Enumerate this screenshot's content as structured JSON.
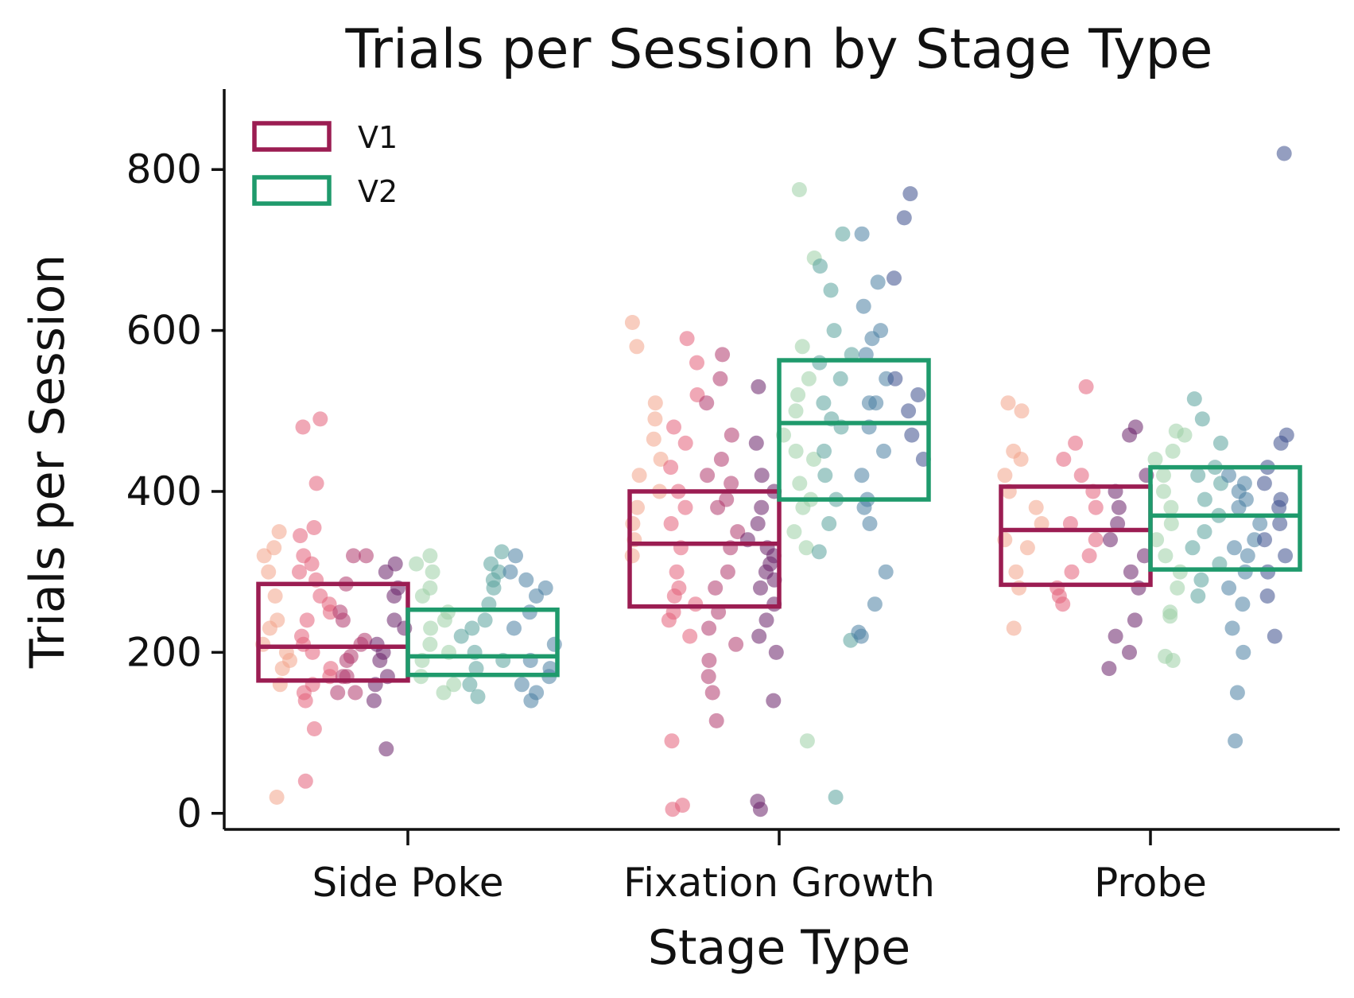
{
  "chart_data": {
    "type": "box",
    "title": "Trials per Session by Stage Type",
    "xlabel": "Stage Type",
    "ylabel": "Trials per Session",
    "categories": [
      "Side Poke",
      "Fixation Growth",
      "Probe"
    ],
    "ylim": [
      -20,
      900
    ],
    "yticks": [
      0,
      200,
      400,
      600,
      800
    ],
    "grid": false,
    "legend": {
      "placement": "top-left",
      "entries": [
        "V1",
        "V2"
      ]
    },
    "series": [
      {
        "name": "V1",
        "color": "#9b1d52",
        "boxes": [
          {
            "category": "Side Poke",
            "q1": 165,
            "median": 207,
            "q3": 285
          },
          {
            "category": "Fixation Growth",
            "q1": 257,
            "median": 335,
            "q3": 400
          },
          {
            "category": "Probe",
            "q1": 284,
            "median": 352,
            "q3": 406
          }
        ],
        "points": [
          [
            20,
            350,
            320,
            300,
            270,
            240,
            210,
            190,
            160,
            330,
            230,
            200,
            180
          ],
          [
            345,
            105,
            40,
            490,
            480,
            410,
            355,
            320,
            300,
            260,
            250,
            220,
            200,
            170,
            150,
            310,
            290,
            270,
            240,
            210,
            180,
            160,
            140
          ],
          [
            320,
            285,
            250,
            210,
            190,
            170,
            150,
            320,
            240,
            215,
            195,
            170,
            150
          ],
          [
            300,
            280,
            240,
            210,
            190,
            170,
            160,
            140,
            80,
            310,
            270,
            230,
            200
          ],
          [
            610,
            580,
            510,
            490,
            465,
            440,
            420,
            400,
            380,
            360,
            340,
            320
          ],
          [
            590,
            560,
            520,
            480,
            460,
            430,
            400,
            380,
            360,
            330,
            300,
            280,
            260,
            250,
            270,
            240,
            220,
            90,
            10,
            5
          ],
          [
            570,
            540,
            510,
            470,
            440,
            410,
            380,
            350,
            330,
            300,
            280,
            250,
            230,
            210,
            190,
            170,
            150,
            115,
            420,
            390
          ],
          [
            530,
            460,
            420,
            400,
            380,
            360,
            340,
            320,
            300,
            280,
            260,
            240,
            220,
            200,
            140,
            15,
            5,
            330,
            310,
            290
          ],
          [
            510,
            500,
            450,
            440,
            420,
            400,
            380,
            360,
            340,
            330,
            300,
            280,
            230
          ],
          [
            530,
            460,
            440,
            420,
            400,
            380,
            360,
            340,
            320,
            300,
            280,
            260,
            270
          ],
          [
            480,
            470,
            420,
            400,
            380,
            360,
            340,
            320,
            300,
            280,
            240,
            220,
            200,
            180
          ]
        ]
      },
      {
        "name": "V2",
        "color": "#1f9a6c",
        "boxes": [
          {
            "category": "Side Poke",
            "q1": 172,
            "median": 195,
            "q3": 253
          },
          {
            "category": "Fixation Growth",
            "q1": 390,
            "median": 485,
            "q3": 563
          },
          {
            "category": "Probe",
            "q1": 303,
            "median": 370,
            "q3": 430
          }
        ],
        "points": [
          [
            320,
            300,
            280,
            250,
            230,
            210,
            190,
            170,
            150,
            310,
            270,
            240,
            200,
            160
          ],
          [
            325,
            300,
            280,
            260,
            240,
            220,
            200,
            180,
            160,
            145,
            310,
            290,
            230,
            190
          ],
          [
            300,
            290,
            270,
            250,
            230,
            210,
            190,
            170,
            150,
            140,
            320,
            280,
            180,
            160
          ],
          [
            775,
            690,
            580,
            540,
            500,
            470,
            440,
            410,
            380,
            350,
            330,
            90,
            520,
            450,
            390
          ],
          [
            720,
            680,
            650,
            600,
            570,
            540,
            510,
            480,
            450,
            420,
            390,
            360,
            325,
            215,
            20,
            560,
            490
          ],
          [
            720,
            660,
            630,
            600,
            570,
            540,
            510,
            480,
            450,
            420,
            390,
            360,
            300,
            260,
            225,
            220,
            590,
            380,
            510
          ],
          [
            770,
            740,
            665,
            540,
            520,
            500,
            470,
            440
          ],
          [
            475,
            470,
            450,
            420,
            400,
            380,
            360,
            340,
            320,
            300,
            280,
            250,
            245,
            190,
            195,
            440
          ],
          [
            515,
            490,
            460,
            430,
            410,
            390,
            370,
            350,
            330,
            310,
            290,
            270,
            420
          ],
          [
            420,
            400,
            380,
            360,
            340,
            320,
            300,
            280,
            260,
            230,
            200,
            150,
            90,
            410,
            390,
            330
          ],
          [
            820,
            470,
            460,
            430,
            410,
            390,
            360,
            340,
            320,
            300,
            270,
            220,
            380
          ]
        ]
      }
    ]
  },
  "dot_palette": [
    "#f3a48a",
    "#e4607a",
    "#b03a6e",
    "#6a2369",
    "#9dd0a6",
    "#5aa39c",
    "#4b7fa3",
    "#3c4f8c"
  ]
}
